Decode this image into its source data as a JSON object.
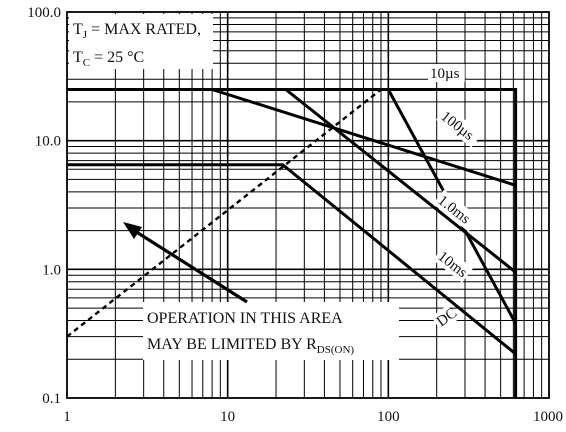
{
  "chart_data": {
    "type": "line",
    "title": "",
    "xlabel": "",
    "ylabel": "",
    "x_scale": "log",
    "y_scale": "log",
    "xlim": [
      1,
      1000
    ],
    "ylim": [
      0.1,
      100
    ],
    "grid": true,
    "x_ticks": [
      {
        "value": 1,
        "label": "1"
      },
      {
        "value": 10,
        "label": "10"
      },
      {
        "value": 100,
        "label": "100"
      },
      {
        "value": 1000,
        "label": "1000"
      }
    ],
    "y_ticks": [
      {
        "value": 0.1,
        "label": "0.1"
      },
      {
        "value": 1,
        "label": "1.0"
      },
      {
        "value": 10,
        "label": "10.0"
      },
      {
        "value": 100,
        "label": "100.0"
      }
    ],
    "conditions": {
      "line1_main": "T",
      "line1_sub": "J",
      "line1_rest": " = MAX RATED,",
      "line2_main": "T",
      "line2_sub": "C",
      "line2_rest": " = 25 °C"
    },
    "series": [
      {
        "label": "10µs",
        "style": "solid",
        "points": [
          [
            1,
            25
          ],
          [
            620,
            25
          ],
          [
            620,
            0.1
          ]
        ]
      },
      {
        "label": "100µs",
        "style": "solid",
        "points": [
          [
            8,
            25
          ],
          [
            620,
            4.5
          ]
        ]
      },
      {
        "label": "1.0ms",
        "style": "solid",
        "points": [
          [
            23,
            25
          ],
          [
            620,
            0.95
          ]
        ]
      },
      {
        "label": "10ms",
        "style": "solid",
        "points": [
          [
            100,
            25
          ],
          [
            620,
            0.38
          ]
        ]
      },
      {
        "label": "DC",
        "style": "solid",
        "points": [
          [
            1,
            6.5
          ],
          [
            22,
            6.5
          ],
          [
            620,
            0.22
          ]
        ]
      },
      {
        "label": "",
        "style": "dashed",
        "points": [
          [
            1,
            0.3
          ],
          [
            90,
            25
          ]
        ]
      }
    ],
    "annotation": {
      "line1": "OPERATION IN THIS AREA",
      "line2_prefix": "MAY BE LIMITED BY R",
      "line2_sub": "DS(ON)"
    }
  }
}
